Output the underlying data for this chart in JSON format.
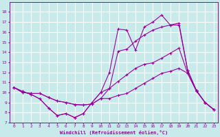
{
  "xlabel": "Windchill (Refroidissement éolien,°C)",
  "background_color": "#c8eaea",
  "grid_color": "#ffffff",
  "line_color": "#990099",
  "x_values": [
    0,
    1,
    2,
    3,
    4,
    5,
    6,
    7,
    8,
    9,
    10,
    11,
    12,
    13,
    14,
    15,
    16,
    17,
    18,
    19,
    20,
    21,
    22,
    23
  ],
  "series1": [
    10.5,
    10.1,
    9.8,
    9.35,
    8.45,
    7.7,
    7.9,
    7.5,
    7.9,
    9.0,
    10.0,
    12.0,
    16.3,
    16.2,
    14.2,
    16.5,
    17.0,
    17.7,
    16.7,
    16.7,
    12.2,
    10.2,
    9.0,
    8.3
  ],
  "series2": [
    10.5,
    10.1,
    9.8,
    9.35,
    8.45,
    7.7,
    7.9,
    7.5,
    7.9,
    9.0,
    10.0,
    10.4,
    14.1,
    14.3,
    15.1,
    15.7,
    16.2,
    16.5,
    16.7,
    16.9,
    12.2,
    10.2,
    9.0,
    8.3
  ],
  "series3": [
    10.5,
    10.0,
    9.9,
    9.9,
    9.5,
    9.15,
    9.0,
    8.8,
    8.75,
    8.85,
    9.4,
    10.4,
    11.1,
    11.75,
    12.4,
    12.8,
    12.95,
    13.4,
    13.9,
    14.4,
    11.9,
    10.15,
    9.0,
    8.3
  ],
  "series4": [
    10.5,
    10.0,
    9.9,
    9.9,
    9.5,
    9.15,
    9.0,
    8.8,
    8.75,
    8.85,
    9.4,
    9.4,
    9.7,
    9.9,
    10.4,
    10.9,
    11.4,
    11.9,
    12.1,
    12.4,
    11.9,
    10.15,
    9.0,
    8.3
  ],
  "ylim": [
    7,
    19
  ],
  "xlim": [
    -0.5,
    23.5
  ],
  "yticks": [
    7,
    8,
    9,
    10,
    11,
    12,
    13,
    14,
    15,
    16,
    17,
    18
  ],
  "xticks": [
    0,
    1,
    2,
    3,
    4,
    5,
    6,
    7,
    8,
    9,
    10,
    11,
    12,
    13,
    14,
    15,
    16,
    17,
    18,
    19,
    20,
    21,
    22,
    23
  ],
  "tick_fontsize": 4.5,
  "xlabel_fontsize": 5.0
}
